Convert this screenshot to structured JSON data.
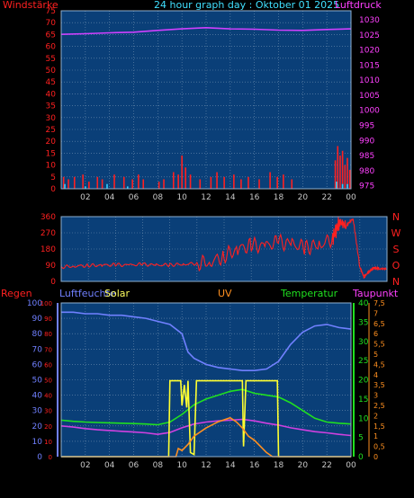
{
  "chart_data": [
    {
      "type": "line",
      "title": "24 hour graph day : Oktober 01 2025",
      "left_label": "Windstärke",
      "right_label": "Luftdruck",
      "x_ticks": [
        "02",
        "04",
        "06",
        "08",
        "10",
        "12",
        "14",
        "16",
        "18",
        "20",
        "22",
        "00"
      ],
      "y_left_ticks": [
        "0",
        "5",
        "10",
        "15",
        "20",
        "25",
        "30",
        "35",
        "40",
        "45",
        "50",
        "55",
        "60",
        "65",
        "70",
        "75"
      ],
      "y_left_range": [
        0,
        75
      ],
      "y_right_ticks": [
        "975",
        "980",
        "985",
        "990",
        "995",
        "1000",
        "1005",
        "1010",
        "1015",
        "1020",
        "1025",
        "1030"
      ],
      "y_right_range": [
        974,
        1033
      ],
      "grid": true,
      "series": [
        {
          "key": "pressure",
          "color": "#d040ff",
          "axis": "right",
          "x": [
            0,
            2,
            4,
            6,
            8,
            10,
            12,
            14,
            16,
            18,
            20,
            22,
            24
          ],
          "values": [
            1025.2,
            1025.4,
            1025.7,
            1025.9,
            1026.5,
            1027.0,
            1027.4,
            1027.0,
            1026.9,
            1026.6,
            1026.5,
            1026.8,
            1027.0
          ]
        },
        {
          "key": "wind_gust",
          "color": "#ff2020",
          "axis": "left",
          "style": "bars",
          "x": [
            0.2,
            0.6,
            1.1,
            1.8,
            2.3,
            3.0,
            3.4,
            4.4,
            5.2,
            5.9,
            6.4,
            6.8,
            8.1,
            8.5,
            9.3,
            9.7,
            10.0,
            10.3,
            10.7,
            11.5,
            12.4,
            12.9,
            13.5,
            14.3,
            14.9,
            15.5,
            16.4,
            17.3,
            17.9,
            18.4,
            19.1,
            22.7,
            22.9,
            23.1,
            23.3,
            23.5,
            23.7,
            23.9
          ],
          "values": [
            5,
            4,
            5,
            6,
            3,
            5,
            4,
            6,
            5,
            4,
            6,
            4,
            3,
            4,
            7,
            6,
            14,
            9,
            6,
            4,
            5,
            7,
            5,
            6,
            4,
            5,
            4,
            7,
            5,
            6,
            4,
            12,
            18,
            14,
            16,
            10,
            13,
            8
          ]
        },
        {
          "key": "wind_speed",
          "color": "#30d0ff",
          "axis": "left",
          "style": "bars",
          "x": [
            0.3,
            2.0,
            3.8,
            5.5,
            22.8,
            23.3,
            23.7
          ],
          "values": [
            2,
            1,
            2,
            1,
            3,
            2,
            2
          ]
        }
      ]
    },
    {
      "type": "line",
      "right_direction_labels": [
        "N",
        "W",
        "S",
        "O",
        "N"
      ],
      "y_ticks": [
        "0",
        "90",
        "180",
        "270",
        "360"
      ],
      "y_range": [
        0,
        360
      ],
      "grid": true,
      "series": [
        {
          "key": "wind_direction",
          "color": "#ff2020",
          "x": [
            0,
            1,
            2,
            3,
            4,
            5,
            6,
            7,
            8,
            9,
            10,
            11,
            12,
            13,
            14,
            15,
            16,
            17,
            18,
            19,
            20,
            20.5,
            21,
            21.5,
            22,
            22.3,
            22.7,
            23,
            23.5,
            24
          ],
          "values": [
            80,
            85,
            88,
            90,
            92,
            90,
            95,
            90,
            92,
            95,
            100,
            110,
            140,
            180,
            200,
            195,
            220,
            205,
            190,
            200,
            240,
            330,
            310,
            350,
            80,
            25,
            55,
            75,
            70,
            70
          ]
        }
      ]
    },
    {
      "type": "line",
      "labels": {
        "rain": "Regen",
        "humidity": "Luftfeuchte",
        "solar": "Solar",
        "uv": "UV",
        "temperature": "Temperatur",
        "dewpoint": "Taupunkt"
      },
      "y_left_ticks": [
        "0",
        "10",
        "20",
        "30",
        "40",
        "50",
        "60",
        "70",
        "80",
        "90",
        "100"
      ],
      "y_left_range": [
        0,
        100
      ],
      "y_right_ticks": [
        "0",
        "5",
        "10",
        "15",
        "20",
        "25",
        "30",
        "35",
        "40"
      ],
      "y_right_range": [
        0,
        40
      ],
      "y_uv_ticks": [
        "0",
        "0,5",
        "1",
        "1,5",
        "2",
        "2,5",
        "3",
        "3,5",
        "4",
        "4,5",
        "5",
        "5,5",
        "6",
        "6,5",
        "7",
        "7,5"
      ],
      "y_uv_range": [
        0,
        7.5
      ],
      "grid": true,
      "series": [
        {
          "key": "humidity",
          "color": "#7080ff",
          "axis": "left",
          "x": [
            0,
            1,
            2,
            3,
            4,
            5,
            6,
            7,
            8,
            9,
            10,
            10.5,
            11,
            12,
            13,
            14,
            15,
            16,
            17,
            18,
            19,
            20,
            21,
            22,
            23,
            24
          ],
          "values": [
            94,
            94,
            93,
            93,
            92,
            92,
            91,
            90,
            88,
            86,
            80,
            68,
            64,
            60,
            58,
            57,
            56,
            56,
            57,
            62,
            73,
            81,
            85,
            86,
            84,
            83
          ]
        },
        {
          "key": "temperature",
          "color": "#20e020",
          "axis": "right",
          "x": [
            0,
            1,
            2,
            3,
            4,
            5,
            6,
            7,
            8,
            9,
            10,
            11,
            12,
            13,
            14,
            15,
            16,
            17,
            18,
            19,
            20,
            21,
            22,
            23,
            24
          ],
          "values": [
            9.5,
            9.2,
            9.0,
            8.9,
            8.8,
            8.7,
            8.6,
            8.5,
            8.3,
            9.0,
            11,
            13.5,
            15,
            16,
            17,
            17.5,
            16.5,
            16,
            15.5,
            14,
            12,
            10,
            9,
            8.7,
            8.5
          ]
        },
        {
          "key": "dewpoint",
          "color": "#d040e0",
          "axis": "right",
          "x": [
            0,
            1,
            2,
            3,
            4,
            5,
            6,
            7,
            8,
            9,
            10,
            11,
            12,
            13,
            14,
            15,
            16,
            17,
            18,
            19,
            20,
            21,
            22,
            23,
            24
          ],
          "values": [
            8,
            7.7,
            7.3,
            7,
            6.8,
            6.6,
            6.4,
            6.2,
            5.8,
            6.3,
            7.5,
            8.5,
            9,
            9.3,
            9.5,
            9.7,
            9.3,
            8.7,
            8.2,
            7.5,
            7,
            6.5,
            6.2,
            5.8,
            5.5
          ]
        },
        {
          "key": "solar",
          "color": "#ffff30",
          "axis": "uv",
          "x": [
            0,
            8.9,
            9.0,
            9.9,
            10.0,
            10.2,
            10.4,
            10.5,
            10.7,
            11.0,
            11.2,
            11.5,
            15.0,
            15.1,
            15.3,
            15.5,
            17.9,
            18.0,
            24
          ],
          "values": [
            0,
            0,
            3.7,
            3.7,
            2.5,
            3.5,
            2.4,
            3.7,
            0.2,
            0.1,
            3.7,
            3.7,
            3.7,
            0.5,
            3.7,
            3.7,
            3.7,
            0,
            0
          ]
        },
        {
          "key": "uv",
          "color": "#ff9020",
          "axis": "uv",
          "x": [
            0,
            9.5,
            9.7,
            10.0,
            10.5,
            11,
            12,
            13,
            14,
            14.5,
            15,
            15.5,
            16,
            16.5,
            17,
            17.5,
            24
          ],
          "values": [
            0,
            0,
            0.4,
            0.3,
            0.6,
            1.0,
            1.4,
            1.7,
            1.9,
            1.7,
            1.4,
            1.0,
            0.8,
            0.5,
            0.2,
            0,
            0
          ]
        }
      ]
    }
  ]
}
